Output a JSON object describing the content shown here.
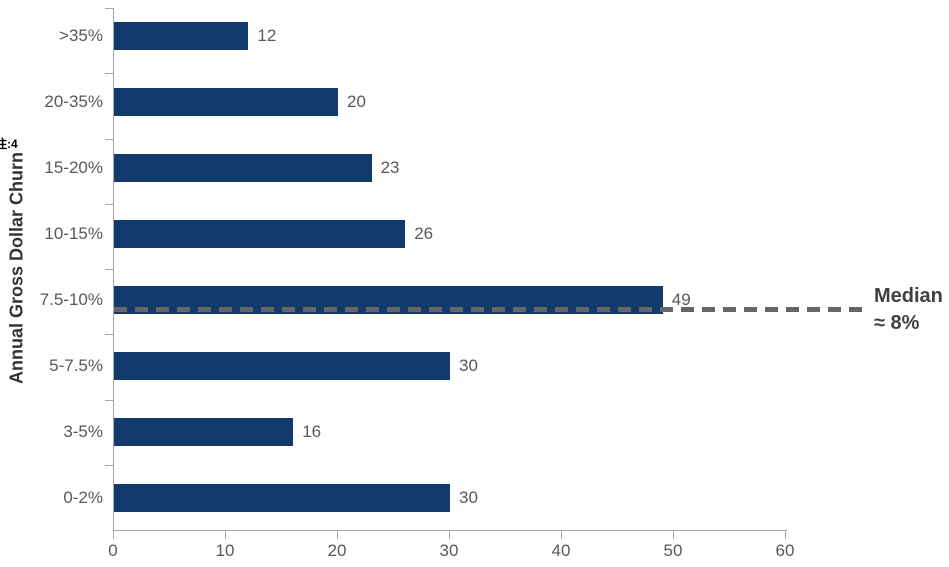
{
  "chart_data": {
    "type": "bar",
    "orientation": "horizontal",
    "title": "",
    "xlabel": "",
    "ylabel": "Annual Gross Dollar Churn",
    "categories": [
      ">35%",
      "20-35%",
      "15-20%",
      "10-15%",
      "7.5-10%",
      "5-7.5%",
      "3-5%",
      "0-2%"
    ],
    "values": [
      12,
      20,
      23,
      26,
      49,
      30,
      16,
      30
    ],
    "xlim": [
      0,
      60
    ],
    "x_ticks": [
      0,
      10,
      20,
      30,
      40,
      50,
      60
    ],
    "grid": false,
    "legend": false,
    "annotation": {
      "text": "Median ≈ 8%",
      "line1": "Median",
      "line2": "≈ 8%",
      "at_category": "7.5-10%",
      "style": "horizontal-dashed-line"
    }
  },
  "footnote": "注:4",
  "colors": {
    "bar": "#123a6d",
    "axis": "#a6a6a6",
    "tick_label": "#595959",
    "value_label": "#595959",
    "category_label": "#595959",
    "median_line": "#666666",
    "median_text": "#404040",
    "background": "#ffffff"
  }
}
